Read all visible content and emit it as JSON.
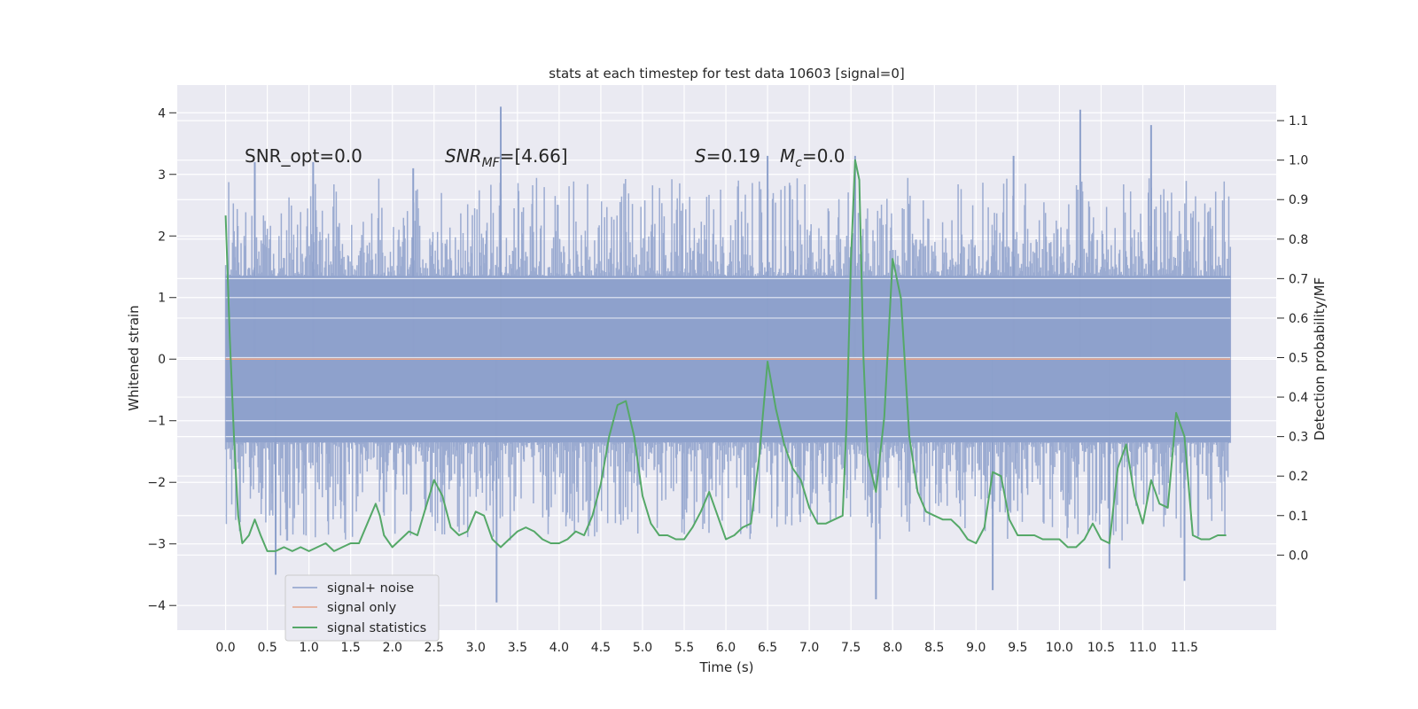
{
  "chart_data": {
    "type": "line",
    "title": "stats at each timestep for test data 10603 [signal=0]",
    "xlabel": "Time (s)",
    "ylabel": "Whitened strain",
    "y2label": "Detection probability/MF",
    "xlim": [
      -0.58,
      12.6
    ],
    "ylim": [
      -4.4,
      4.45
    ],
    "y2lim": [
      -0.19,
      1.19
    ],
    "x_ticks": [
      0.0,
      0.5,
      1.0,
      1.5,
      2.0,
      2.5,
      3.0,
      3.5,
      4.0,
      4.5,
      5.0,
      5.5,
      6.0,
      6.5,
      7.0,
      7.5,
      8.0,
      8.5,
      9.0,
      9.5,
      10.0,
      10.5,
      11.0,
      11.5
    ],
    "x_tick_labels": [
      "0.0",
      "0.5",
      "1.0",
      "1.5",
      "2.0",
      "2.5",
      "3.0",
      "3.5",
      "4.0",
      "4.5",
      "5.0",
      "5.5",
      "6.0",
      "6.5",
      "7.0",
      "7.5",
      "8.0",
      "8.5",
      "9.0",
      "9.5",
      "10.0",
      "10.5",
      "11.0",
      "11.5"
    ],
    "y_ticks": [
      -4,
      -3,
      -2,
      -1,
      0,
      1,
      2,
      3,
      4
    ],
    "y_tick_labels": [
      "−4",
      "−3",
      "−2",
      "−1",
      "0",
      "1",
      "2",
      "3",
      "4"
    ],
    "y2_ticks": [
      0.0,
      0.1,
      0.2,
      0.3,
      0.4,
      0.5,
      0.6,
      0.7,
      0.8,
      0.9,
      1.0,
      1.1
    ],
    "y2_tick_labels": [
      "0.0",
      "0.1",
      "0.2",
      "0.3",
      "0.4",
      "0.5",
      "0.6",
      "0.7",
      "0.8",
      "0.9",
      "1.0",
      "1.1"
    ],
    "grid": true,
    "legend_position": "lower-left",
    "annotations": {
      "snr_opt": "SNR_opt=0.0",
      "snr_mf_main": "SNR",
      "snr_mf_sub": "MF",
      "snr_mf_value": "=[4.66]",
      "s_sym": "S",
      "s_value": "=0.19",
      "mc_sym": "M",
      "mc_sub": "c",
      "mc_value": "=0.0"
    },
    "series": [
      {
        "name": "signal+ noise",
        "color": "#8da0cb",
        "description_type": "noise",
        "x_range": [
          0.0,
          12.05
        ],
        "band": [
          -1.35,
          1.35
        ],
        "peak_up": [
          [
            0.35,
            3.2
          ],
          [
            1.05,
            3.2
          ],
          [
            2.25,
            3.1
          ],
          [
            3.3,
            4.1
          ],
          [
            6.5,
            3.3
          ],
          [
            7.55,
            3.3
          ],
          [
            9.45,
            3.3
          ],
          [
            10.25,
            4.05
          ],
          [
            11.1,
            3.8
          ]
        ],
        "peak_down": [
          [
            0.6,
            -3.5
          ],
          [
            3.25,
            -3.95
          ],
          [
            7.8,
            -3.9
          ],
          [
            9.2,
            -3.75
          ],
          [
            10.6,
            -3.4
          ],
          [
            11.5,
            -3.6
          ]
        ]
      },
      {
        "name": "signal only",
        "color": "#e5a58a",
        "x": [
          0.0,
          12.05
        ],
        "y": [
          0.0,
          0.0
        ]
      },
      {
        "name": "signal statistics",
        "color": "#55a868",
        "axis": "right",
        "x": [
          0.0,
          0.05,
          0.1,
          0.15,
          0.2,
          0.28,
          0.35,
          0.42,
          0.5,
          0.6,
          0.7,
          0.8,
          0.9,
          1.0,
          1.1,
          1.2,
          1.3,
          1.4,
          1.5,
          1.6,
          1.7,
          1.8,
          1.85,
          1.9,
          2.0,
          2.1,
          2.2,
          2.3,
          2.4,
          2.5,
          2.6,
          2.7,
          2.8,
          2.9,
          3.0,
          3.1,
          3.2,
          3.3,
          3.4,
          3.5,
          3.6,
          3.7,
          3.8,
          3.9,
          4.0,
          4.1,
          4.2,
          4.3,
          4.4,
          4.5,
          4.6,
          4.7,
          4.8,
          4.9,
          5.0,
          5.1,
          5.2,
          5.3,
          5.4,
          5.5,
          5.6,
          5.7,
          5.8,
          5.9,
          6.0,
          6.1,
          6.2,
          6.3,
          6.4,
          6.5,
          6.6,
          6.7,
          6.8,
          6.9,
          7.0,
          7.1,
          7.2,
          7.3,
          7.4,
          7.45,
          7.5,
          7.55,
          7.6,
          7.65,
          7.7,
          7.8,
          7.9,
          8.0,
          8.1,
          8.2,
          8.3,
          8.4,
          8.5,
          8.6,
          8.7,
          8.8,
          8.9,
          9.0,
          9.1,
          9.2,
          9.3,
          9.4,
          9.5,
          9.6,
          9.7,
          9.8,
          9.9,
          10.0,
          10.1,
          10.2,
          10.3,
          10.4,
          10.5,
          10.6,
          10.7,
          10.8,
          10.9,
          11.0,
          11.1,
          11.2,
          11.3,
          11.4,
          11.5,
          11.6,
          11.7,
          11.8,
          11.9,
          12.0
        ],
        "y": [
          0.86,
          0.55,
          0.3,
          0.1,
          0.03,
          0.05,
          0.09,
          0.05,
          0.01,
          0.01,
          0.02,
          0.01,
          0.02,
          0.01,
          0.02,
          0.03,
          0.01,
          0.02,
          0.03,
          0.03,
          0.08,
          0.13,
          0.1,
          0.05,
          0.02,
          0.04,
          0.06,
          0.05,
          0.12,
          0.19,
          0.15,
          0.07,
          0.05,
          0.06,
          0.11,
          0.1,
          0.04,
          0.02,
          0.04,
          0.06,
          0.07,
          0.06,
          0.04,
          0.03,
          0.03,
          0.04,
          0.06,
          0.05,
          0.1,
          0.18,
          0.3,
          0.38,
          0.39,
          0.3,
          0.15,
          0.08,
          0.05,
          0.05,
          0.04,
          0.04,
          0.07,
          0.11,
          0.16,
          0.1,
          0.04,
          0.05,
          0.07,
          0.08,
          0.25,
          0.49,
          0.37,
          0.28,
          0.22,
          0.19,
          0.12,
          0.08,
          0.08,
          0.09,
          0.1,
          0.35,
          0.75,
          1.0,
          0.95,
          0.5,
          0.25,
          0.16,
          0.35,
          0.75,
          0.65,
          0.3,
          0.16,
          0.11,
          0.1,
          0.09,
          0.09,
          0.07,
          0.04,
          0.03,
          0.07,
          0.21,
          0.2,
          0.09,
          0.05,
          0.05,
          0.05,
          0.04,
          0.04,
          0.04,
          0.02,
          0.02,
          0.04,
          0.08,
          0.04,
          0.03,
          0.22,
          0.28,
          0.15,
          0.08,
          0.19,
          0.13,
          0.12,
          0.36,
          0.3,
          0.05,
          0.04,
          0.04,
          0.05,
          0.05
        ]
      }
    ]
  }
}
